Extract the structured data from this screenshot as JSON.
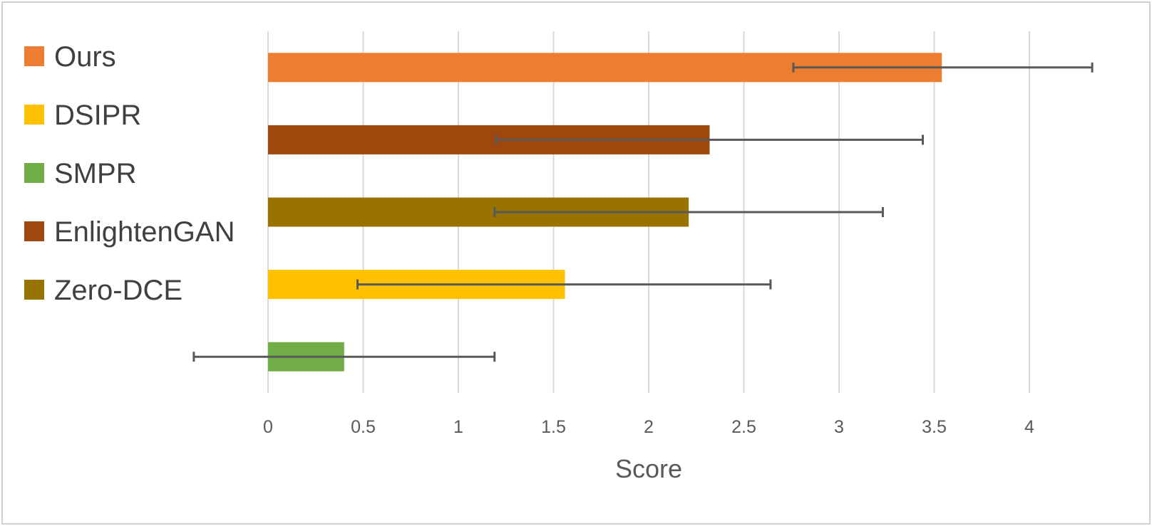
{
  "chart_data": {
    "type": "bar",
    "orientation": "horizontal",
    "xlabel": "Score",
    "ylabel": "",
    "xlim": [
      0,
      4
    ],
    "x_ticks": [
      0,
      0.5,
      1,
      1.5,
      2,
      2.5,
      3,
      3.5,
      4
    ],
    "x_tick_labels": [
      "0",
      "0.5",
      "1",
      "1.5",
      "2",
      "2.5",
      "3",
      "3.5",
      "4"
    ],
    "grid": "vertical",
    "legend_position": "left",
    "legend": [
      {
        "name": "Ours",
        "color": "#ED7D31"
      },
      {
        "name": "DSIPR",
        "color": "#FFC000"
      },
      {
        "name": "SMPR",
        "color": "#70AD47"
      },
      {
        "name": "EnlightenGAN",
        "color": "#9E480E"
      },
      {
        "name": "Zero-DCE",
        "color": "#997300"
      }
    ],
    "bars": [
      {
        "name": "Ours",
        "value": 3.54,
        "error_low": 2.76,
        "error_high": 4.33,
        "color": "#ED7D31"
      },
      {
        "name": "EnlightenGAN",
        "value": 2.32,
        "error_low": 1.2,
        "error_high": 3.44,
        "color": "#9E480E"
      },
      {
        "name": "Zero-DCE",
        "value": 2.21,
        "error_low": 1.19,
        "error_high": 3.23,
        "color": "#997300"
      },
      {
        "name": "DSIPR",
        "value": 1.56,
        "error_low": 0.47,
        "error_high": 2.64,
        "color": "#FFC000"
      },
      {
        "name": "SMPR",
        "value": 0.4,
        "error_low": -0.39,
        "error_high": 1.19,
        "color": "#70AD47"
      }
    ],
    "gridline_color": "#d9d9d9",
    "error_bar_color": "#595959"
  }
}
